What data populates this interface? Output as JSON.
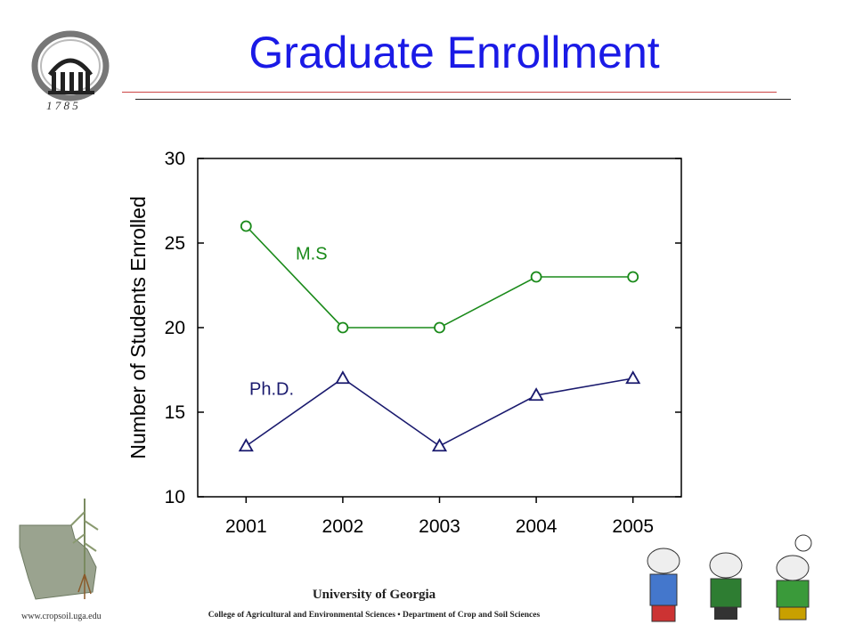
{
  "slide": {
    "title": "Graduate Enrollment",
    "logo_year": "1 7 8 5"
  },
  "footer": {
    "university": "University of Georgia",
    "college": "College of Agricultural and Environmental Sciences • Department of Crop and Soil Sciences",
    "url": "www.cropsoil.uga.edu"
  },
  "colors": {
    "title": "#1a1ae6",
    "ms_series": "#1a8a1a",
    "phd_series": "#1a1a6e"
  },
  "chart_data": {
    "type": "line",
    "x": [
      2001,
      2002,
      2003,
      2004,
      2005
    ],
    "ylabel": "Number of Students Enrolled",
    "xlabel": "",
    "ylim": [
      10,
      30
    ],
    "yticks": [
      10,
      15,
      20,
      25,
      30
    ],
    "grid": false,
    "series": [
      {
        "name": "M.S",
        "values": [
          26,
          20,
          20,
          23,
          23
        ],
        "marker": "circle",
        "color": "#1a8a1a"
      },
      {
        "name": "Ph.D.",
        "values": [
          13,
          17,
          13,
          16,
          17
        ],
        "marker": "triangle",
        "color": "#1a1a6e"
      }
    ]
  }
}
